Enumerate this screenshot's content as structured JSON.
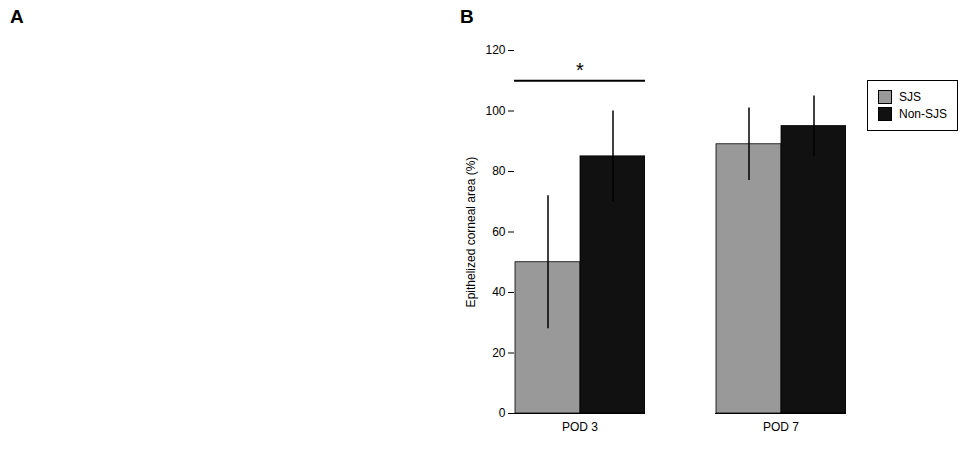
{
  "chart_data": [
    {
      "type": "image",
      "title": "A"
    },
    {
      "type": "bar",
      "title": "B",
      "categories": [
        "POD 3",
        "POD 7"
      ],
      "series": [
        {
          "name": "SJS",
          "color": "#999999",
          "values": [
            50,
            89
          ],
          "errors": [
            22,
            12
          ]
        },
        {
          "name": "Non-SJS",
          "color": "#111111",
          "values": [
            85,
            95
          ],
          "errors": [
            15,
            10
          ]
        }
      ],
      "ylabel": "Epithelized corneal area (%)",
      "ylim": [
        0,
        120
      ],
      "yticks": [
        0,
        20,
        40,
        60,
        80,
        100,
        120
      ],
      "grid": false,
      "legend": "upper right",
      "significance": [
        {
          "category": "POD 3",
          "y": 110,
          "label": "*"
        }
      ]
    }
  ]
}
